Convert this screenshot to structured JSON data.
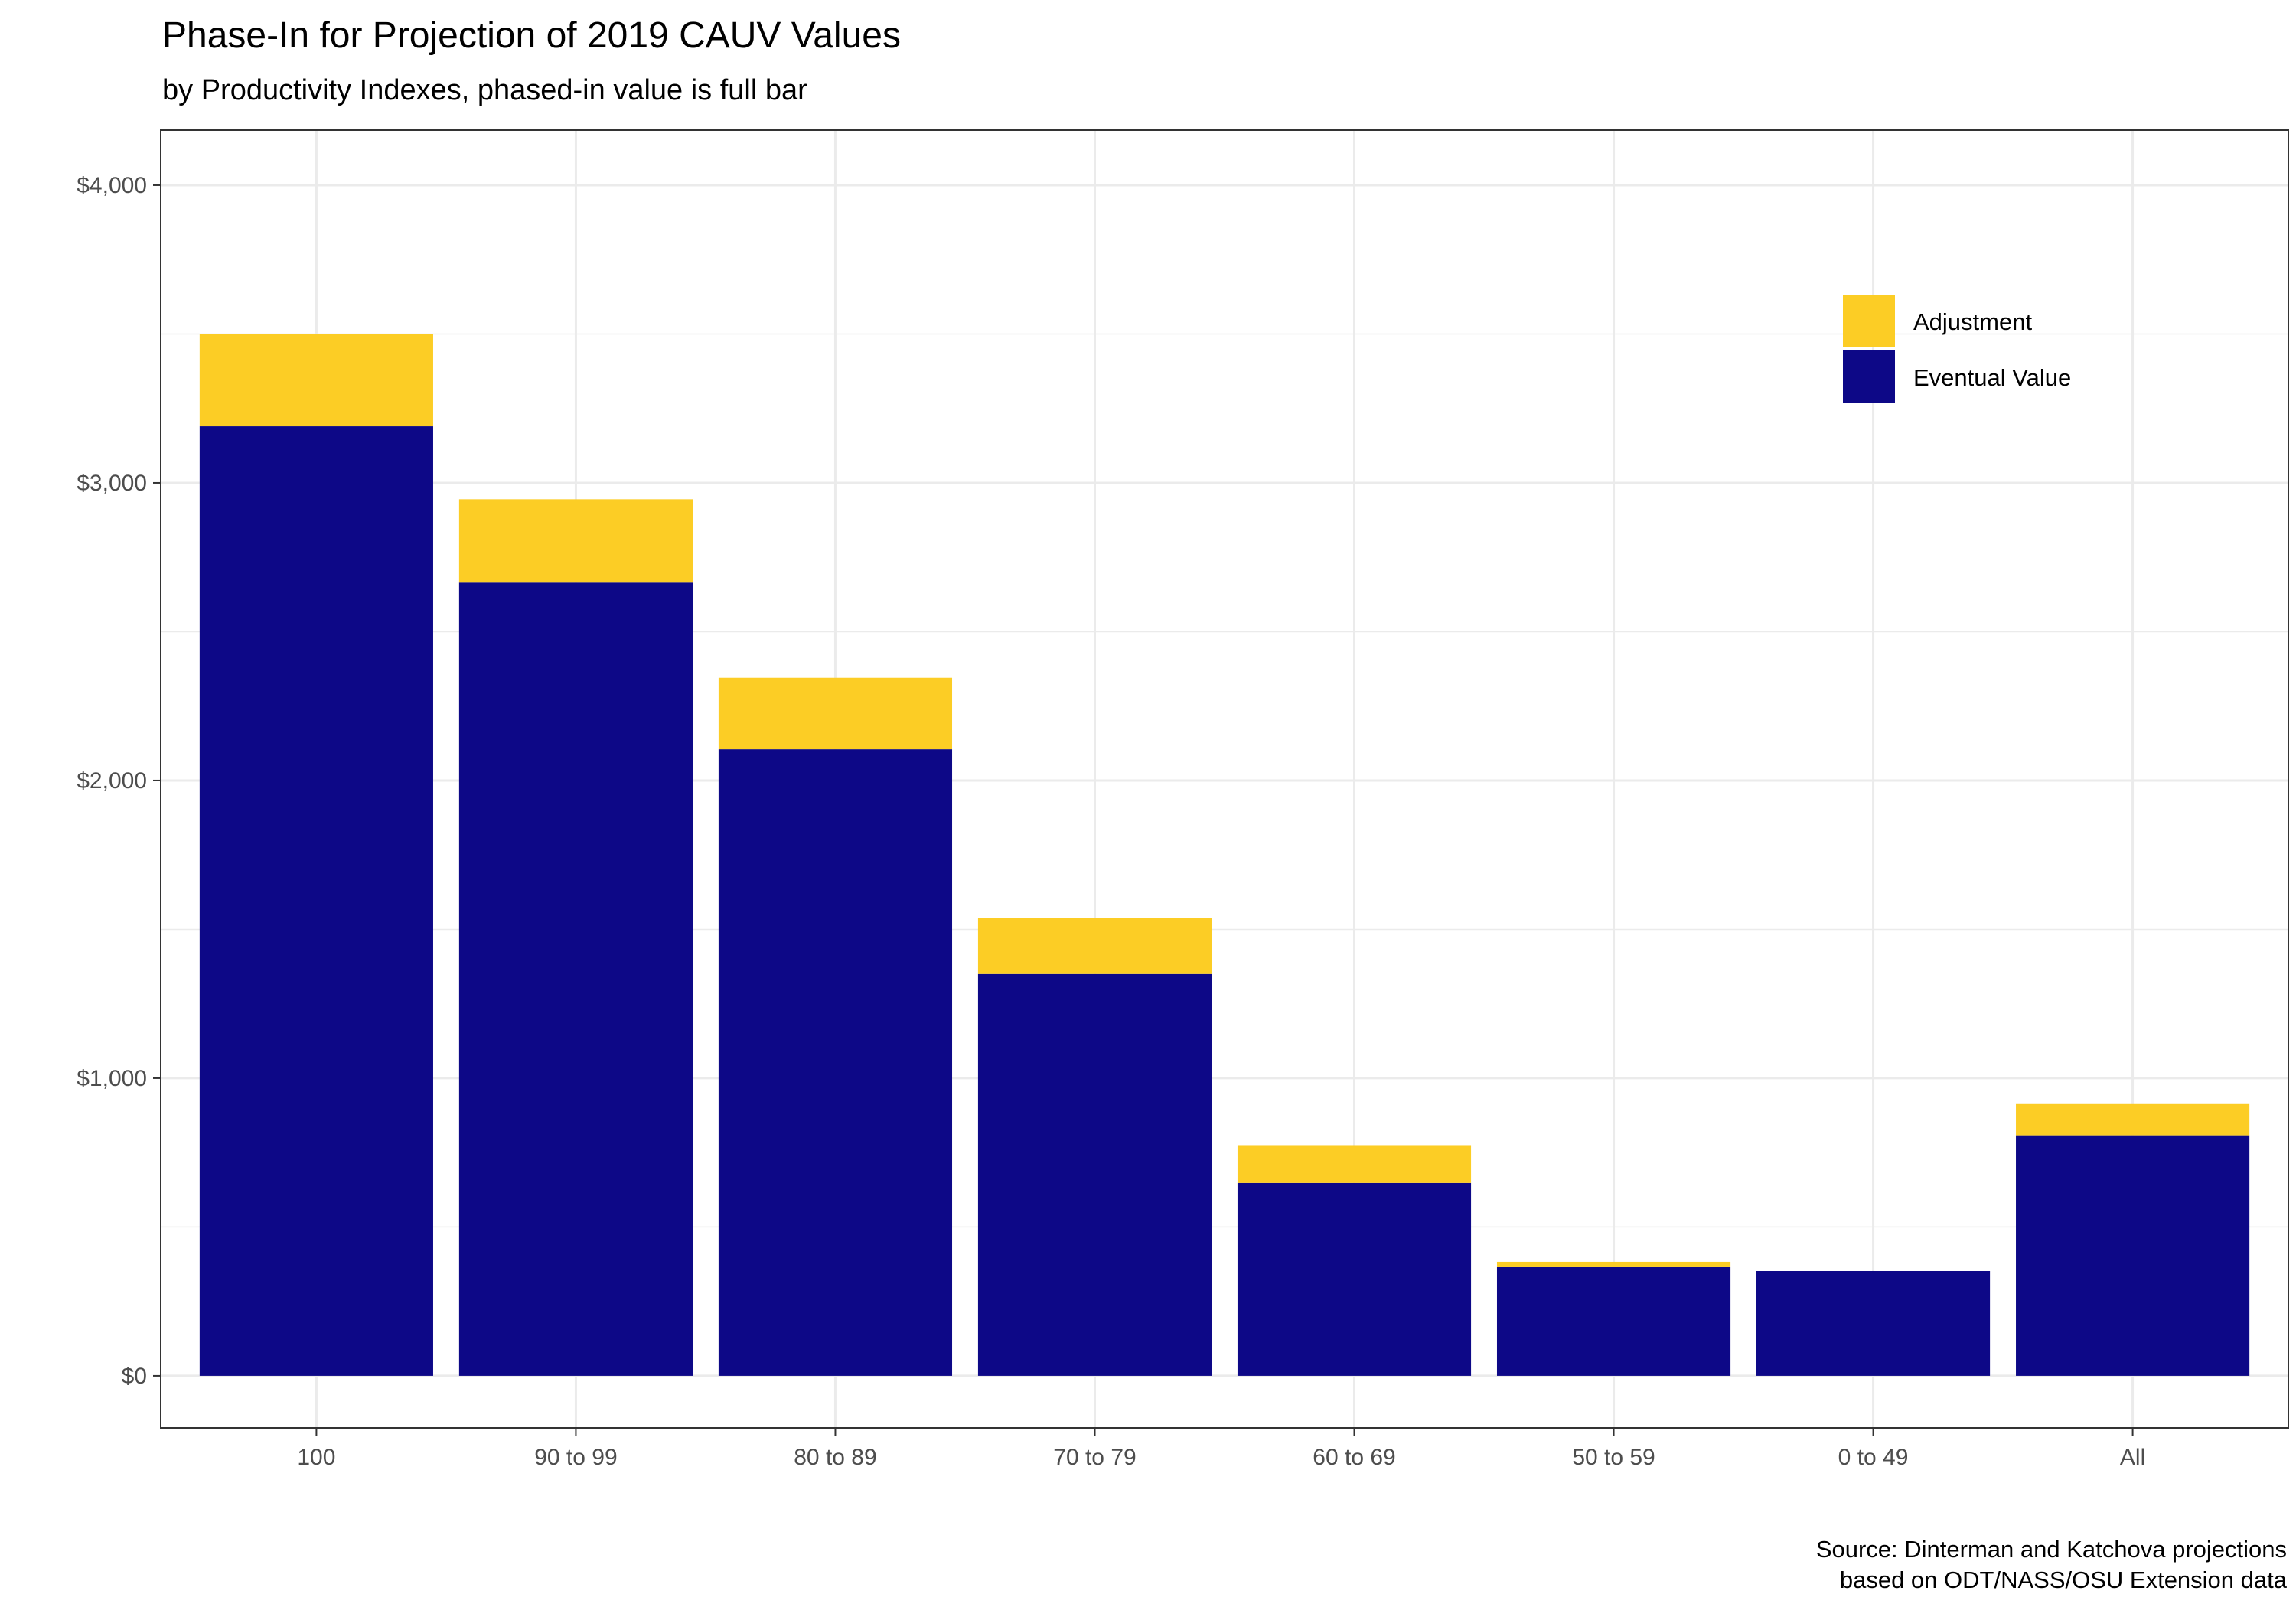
{
  "chart_data": {
    "type": "bar",
    "stacked": true,
    "title": "Phase-In for Projection of 2019 CAUV Values",
    "subtitle": "by Productivity Indexes, phased-in value is full bar",
    "xlabel": "",
    "ylabel": "",
    "categories": [
      "100",
      "90 to 99",
      "80 to 89",
      "70 to 79",
      "60 to 69",
      "50 to 59",
      "0 to 49",
      "All"
    ],
    "series": [
      {
        "name": "Eventual Value",
        "color": "#0d0887",
        "values": [
          3190,
          2665,
          2105,
          1350,
          648,
          365,
          352,
          808
        ]
      },
      {
        "name": "Adjustment",
        "color": "#fccd25",
        "values": [
          310,
          280,
          240,
          188,
          127,
          18,
          0,
          105
        ]
      }
    ],
    "yticks": [
      0,
      1000,
      2000,
      3000,
      4000
    ],
    "ytick_labels": [
      "$0",
      "$1,000",
      "$2,000",
      "$3,000",
      "$4,000"
    ],
    "ylim": [
      -175,
      4185
    ],
    "grid": true,
    "legend": {
      "position": "top-right",
      "items": [
        "Adjustment",
        "Eventual Value"
      ]
    },
    "caption": [
      "Source: Dinterman and Katchova projections",
      "based on ODT/NASS/OSU Extension data"
    ]
  }
}
